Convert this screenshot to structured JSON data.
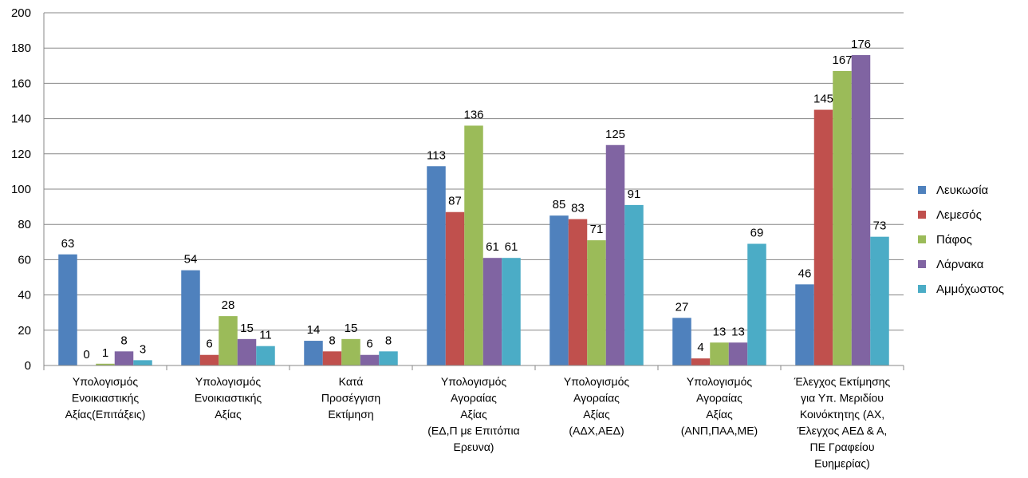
{
  "chart_data": {
    "type": "bar",
    "title": "",
    "xlabel": "",
    "ylabel": "",
    "ylim": [
      0,
      200
    ],
    "yticks": [
      0,
      20,
      40,
      60,
      80,
      100,
      120,
      140,
      160,
      180,
      200
    ],
    "grid": true,
    "legend_position": "right",
    "categories": [
      [
        "Υπολογισμός",
        "Ενοικιαστικής",
        "Αξίας(Επιτάξεις)"
      ],
      [
        "Υπολογισμός",
        "Ενοικιαστικής",
        "Αξίας"
      ],
      [
        "Κατά",
        "Προσέγγιση",
        "Εκτίμηση"
      ],
      [
        "Υπολογισμός",
        "Αγοραίας",
        "Αξίας",
        "(ΕΔ,Π με Επιτόπια",
        "Ερευνα)"
      ],
      [
        "Υπολογισμός",
        "Αγοραίας",
        "Αξίας",
        "(ΑΔΧ,ΑΕΔ)"
      ],
      [
        "Υπολογισμός",
        "Αγοραίας",
        "Αξίας",
        "(ΑΝΠ,ΠΑΑ,ΜΕ)"
      ],
      [
        "Έλεγχος Εκτίμησης",
        "για Υπ. Μεριδίου",
        "Κοινόκτητης (ΑΧ,",
        "Έλεγχος ΑΕΔ & Α,",
        "ΠΕ Γραφείου",
        "Ευημερίας)"
      ]
    ],
    "series": [
      {
        "name": "Λευκωσία",
        "color": "#4F81BD",
        "values": [
          63,
          54,
          14,
          113,
          85,
          27,
          46
        ]
      },
      {
        "name": "Λεμεσός",
        "color": "#C0504D",
        "values": [
          0,
          6,
          8,
          87,
          83,
          4,
          145
        ]
      },
      {
        "name": "Πάφος",
        "color": "#9BBB59",
        "values": [
          1,
          28,
          15,
          136,
          71,
          13,
          167
        ]
      },
      {
        "name": "Λάρνακα",
        "color": "#8064A2",
        "values": [
          8,
          15,
          6,
          61,
          125,
          13,
          176
        ]
      },
      {
        "name": "Αμμόχωστος",
        "color": "#4BACC6",
        "values": [
          3,
          11,
          8,
          61,
          91,
          69,
          73
        ]
      }
    ]
  }
}
